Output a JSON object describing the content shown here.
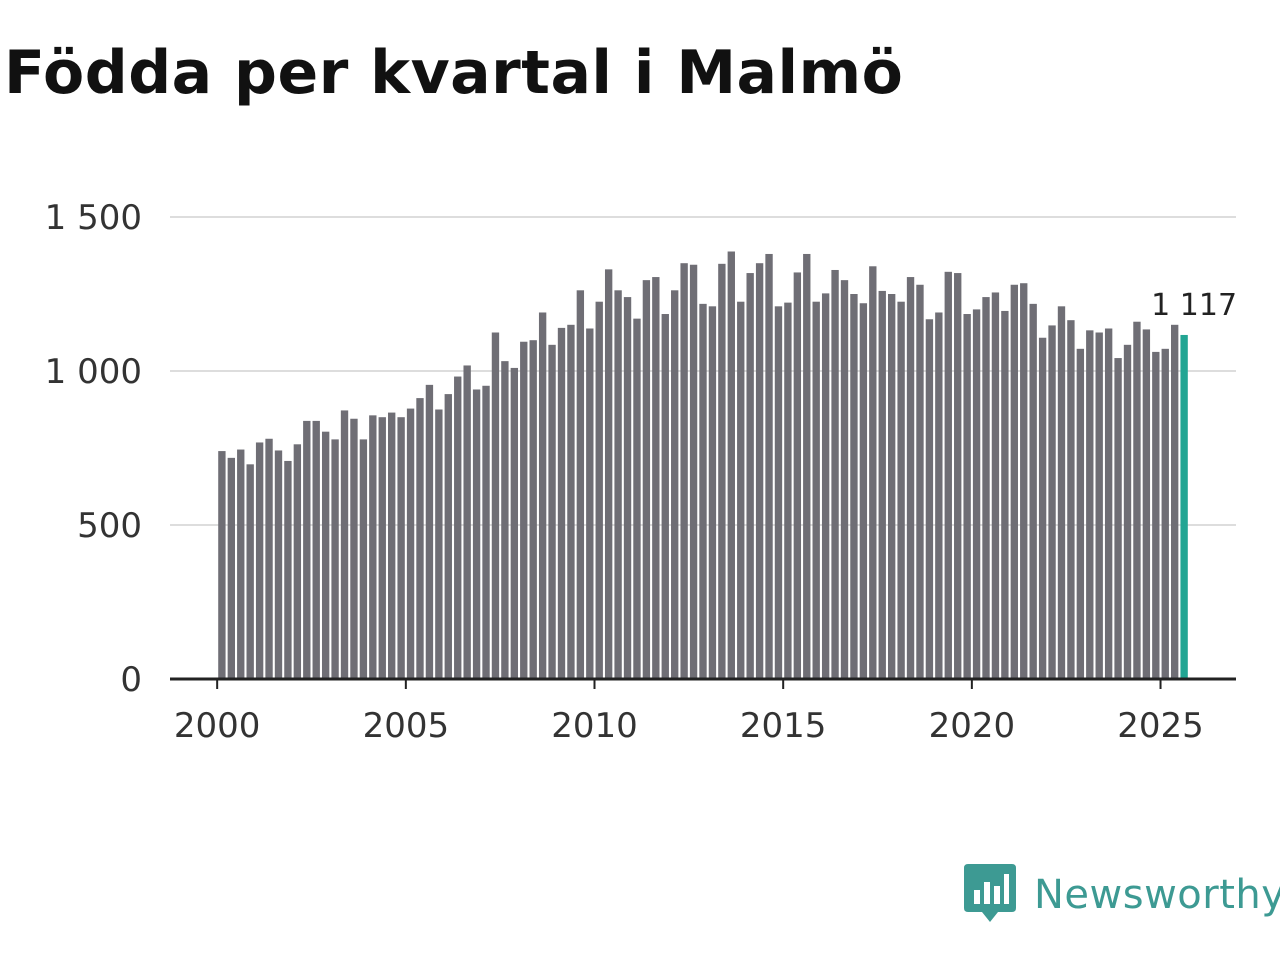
{
  "title": "Födda per kvartal i Malmö",
  "logo": {
    "name": "Newsworthy"
  },
  "colors": {
    "bar": "#6f6e75",
    "highlight": "#22a593",
    "grid": "#dddddd",
    "axis": "#222222",
    "logo": "#3d9a93"
  },
  "chart_data": {
    "type": "bar",
    "title": "Födda per kvartal i Malmö",
    "xlabel": "",
    "ylabel": "",
    "x_start": 2000,
    "x_step": 0.25,
    "xlim": [
      1998.75,
      2027.0
    ],
    "ylim": [
      0,
      1500
    ],
    "yticks": [
      0,
      500,
      1000,
      1500
    ],
    "ytick_labels": [
      "0",
      "500",
      "1 000",
      "1 500"
    ],
    "xticks": [
      2000,
      2005,
      2010,
      2015,
      2020,
      2025
    ],
    "xtick_labels": [
      "2000",
      "2005",
      "2010",
      "2015",
      "2020",
      "2025"
    ],
    "grid": true,
    "values": [
      740,
      718,
      745,
      697,
      768,
      780,
      742,
      708,
      762,
      838,
      838,
      803,
      778,
      872,
      845,
      778,
      856,
      850,
      865,
      850,
      878,
      912,
      955,
      875,
      925,
      982,
      1018,
      940,
      952,
      1125,
      1032,
      1010,
      1095,
      1100,
      1190,
      1085,
      1140,
      1150,
      1262,
      1138,
      1225,
      1330,
      1262,
      1240,
      1170,
      1295,
      1305,
      1185,
      1262,
      1350,
      1345,
      1218,
      1210,
      1348,
      1388,
      1225,
      1318,
      1350,
      1380,
      1210,
      1222,
      1320,
      1380,
      1225,
      1252,
      1328,
      1295,
      1250,
      1220,
      1340,
      1260,
      1250,
      1225,
      1305,
      1280,
      1168,
      1190,
      1322,
      1318,
      1185,
      1200,
      1240,
      1255,
      1195,
      1280,
      1285,
      1218,
      1108,
      1148,
      1210,
      1165,
      1072,
      1132,
      1125,
      1138,
      1042,
      1085,
      1160,
      1135,
      1062,
      1072,
      1150,
      1117
    ],
    "highlight_index": 102,
    "highlight_label": "1 117"
  }
}
